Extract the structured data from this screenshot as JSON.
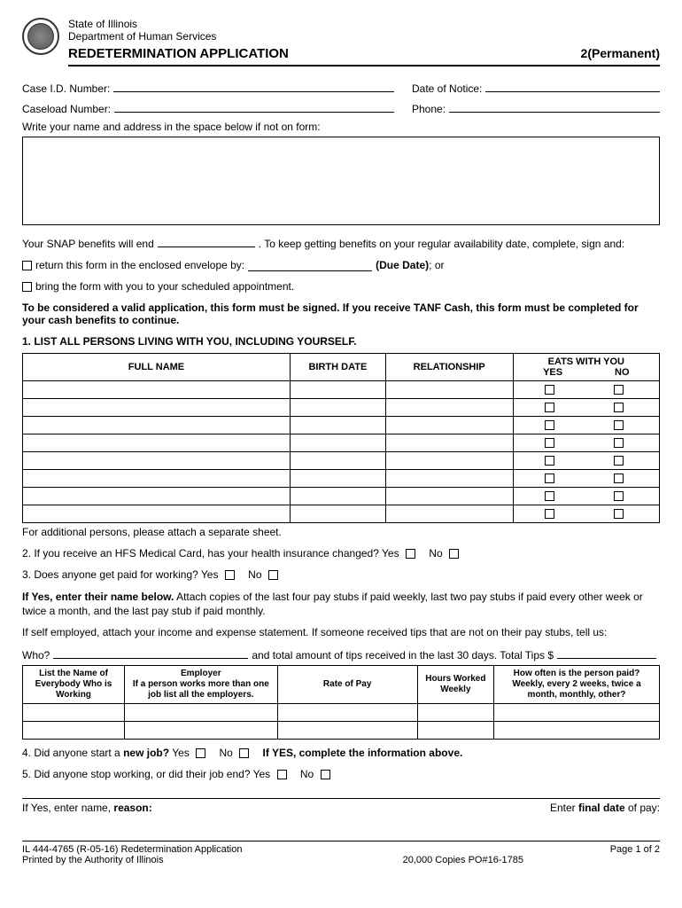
{
  "header": {
    "state": "State of Illinois",
    "dept": "Department of Human Services",
    "title": "REDETERMINATION APPLICATION",
    "permanent": "2(Permanent)"
  },
  "fields": {
    "caseId": "Case I.D. Number:",
    "dateNotice": "Date of Notice:",
    "caseload": "Caseload Number:",
    "phone": "Phone:",
    "addressInstr": "Write your name and address in the space below if not on form:"
  },
  "snap": {
    "prefix": "Your SNAP benefits will end",
    "suffix": ". To keep getting benefits on your regular availability date, complete, sign and:"
  },
  "check1": {
    "text": "return this form in the enclosed envelope by:",
    "due": "(Due Date)",
    "or": "; or"
  },
  "check2": "bring the form with you to your scheduled appointment.",
  "boldNote": "To be considered a valid application, this form must be signed. If you receive TANF Cash, this form must be completed for your cash benefits to continue.",
  "section1": "1.  LIST ALL PERSONS LIVING WITH YOU, INCLUDING YOURSELF.",
  "personsTable": {
    "col1": "FULL NAME",
    "col2": "BIRTH DATE",
    "col3": "RELATIONSHIP",
    "col4": "EATS WITH YOU",
    "yes": "YES",
    "no": "NO",
    "rowCount": 8
  },
  "tableNote": "For additional persons, please attach a separate sheet.",
  "q2": "2. If you receive an HFS Medical Card, has your health insurance changed? Yes",
  "q2no": "No",
  "q3": "3. Does anyone get paid for working? Yes",
  "q3no": "No",
  "ifYes": {
    "bold": "If Yes, enter their name below.",
    "rest": " Attach copies of the last four pay stubs if paid weekly, last two pay stubs if paid every other week or twice a month, and the last pay stub if paid monthly."
  },
  "selfEmp": "If self employed, attach your income and expense statement. If someone received tips that are not on their pay stubs, tell us:",
  "who": {
    "label": "Who?",
    "tips": "and total amount of tips received in the last 30 days.  Total Tips $"
  },
  "workTable": {
    "col1": "List the Name of Everybody Who is Working",
    "col2a": "Employer",
    "col2b": "If a person works more than one job list all the employers.",
    "col3": "Rate of Pay",
    "col4": "Hours Worked Weekly",
    "col5a": "How often is the person paid?",
    "col5b": "Weekly, every 2 weeks, twice a month, monthly, other?"
  },
  "q4": {
    "prefix": "4. Did anyone start a ",
    "bold": "new job?",
    "yes": " Yes",
    "no": "No",
    "after": "If YES, complete the information above."
  },
  "q5": {
    "text": "5. Did anyone stop working, or did their job end? Yes",
    "no": "No"
  },
  "reason": {
    "left1": "If Yes, enter name, ",
    "leftBold": "reason:",
    "right1": "Enter ",
    "rightBold": "final date",
    "right2": " of pay:"
  },
  "footer": {
    "form": "IL 444-4765 (R-05-16) Redetermination Application",
    "printed": "Printed by the Authority of Illinois",
    "copies": "20,000 Copies   PO#16-1785",
    "page": "Page 1 of 2"
  }
}
